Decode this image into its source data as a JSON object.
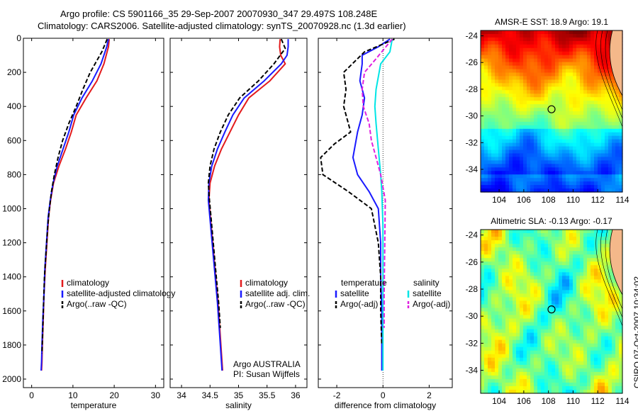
{
  "title_line1": "Argo profile: CS 5901166_35 29-Sep-2007 20070930_347 29.497S 108.248E",
  "title_line2": "Climatology: CARS2006. Satellite-adjusted climatology: synTS_20070928.nc (1.3d earlier)",
  "side_label": "CSIRO 07-Oct-2007 10:34:02",
  "colors": {
    "climatology": "#e31a1c",
    "satellite": "#1a1aff",
    "argo": "#000000",
    "satellite_sal": "#00e5e5",
    "argo_sal_adj": "#e020e0"
  },
  "chart_data": [
    {
      "type": "line",
      "id": "temperature",
      "xlabel": "temperature",
      "xlim": [
        -2,
        32
      ],
      "ylim": [
        0,
        2050
      ],
      "y_reversed": true,
      "xticks": [
        0,
        10,
        20,
        30
      ],
      "yticks": [
        0,
        200,
        400,
        600,
        800,
        1000,
        1200,
        1400,
        1600,
        1800,
        2000
      ],
      "legend": [
        "climatology",
        "satellite-adjusted climatology",
        "Argo(..raw -QC)"
      ],
      "series": [
        {
          "name": "climatology",
          "color": "#e31a1c",
          "dash": "",
          "x": [
            18.8,
            18.6,
            17.5,
            15.8,
            13.2,
            10.8,
            9.6,
            8.2,
            6.6,
            5.3,
            4.6,
            4.1,
            3.7,
            3.3,
            3.0,
            2.8,
            2.6,
            2.5,
            2.4
          ],
          "y": [
            5,
            50,
            150,
            250,
            350,
            450,
            550,
            650,
            750,
            850,
            950,
            1050,
            1200,
            1350,
            1500,
            1650,
            1800,
            1900,
            1950
          ]
        },
        {
          "name": "satellite-adjusted climatology",
          "color": "#1a1aff",
          "dash": "",
          "x": [
            18.6,
            18.2,
            16.8,
            14.7,
            12.2,
            10.2,
            9.0,
            7.6,
            6.2,
            5.2,
            4.5,
            4.0,
            3.6,
            3.2,
            3.0,
            2.7,
            2.5,
            2.4,
            2.3
          ],
          "y": [
            5,
            50,
            150,
            250,
            350,
            450,
            550,
            650,
            750,
            850,
            950,
            1050,
            1200,
            1350,
            1500,
            1650,
            1800,
            1900,
            1950
          ]
        },
        {
          "name": "Argo(..raw -QC)",
          "color": "#000000",
          "dash": "6,3",
          "x": [
            18.3,
            17.0,
            14.2,
            12.4,
            10.8,
            9.0,
            7.5,
            6.4,
            5.5,
            4.8,
            4.3,
            3.9,
            3.5,
            3.1,
            2.9,
            2.7,
            2.5
          ],
          "y": [
            5,
            80,
            200,
            300,
            400,
            500,
            600,
            700,
            800,
            900,
            1000,
            1100,
            1250,
            1400,
            1550,
            1700,
            1850
          ]
        }
      ],
      "annotations": []
    },
    {
      "type": "line",
      "id": "salinity",
      "xlabel": "salinity",
      "xlim": [
        33.8,
        36.2
      ],
      "ylim": [
        0,
        2050
      ],
      "y_reversed": true,
      "xticks": [
        34,
        34.5,
        35,
        35.5,
        36
      ],
      "xticklabels": [
        "34",
        "34.5",
        "35",
        "35.5",
        "36"
      ],
      "yticks": [
        0,
        200,
        400,
        600,
        800,
        1000,
        1200,
        1400,
        1600,
        1800,
        2000
      ],
      "legend": [
        "climatology",
        "satellite adj. clim.",
        "Argo(..raw -QC)"
      ],
      "series": [
        {
          "name": "climatology",
          "color": "#e31a1c",
          "dash": "",
          "x": [
            35.73,
            35.72,
            35.74,
            35.82,
            35.55,
            35.18,
            35.0,
            34.85,
            34.7,
            34.58,
            34.5,
            34.48,
            34.52,
            34.56,
            34.6,
            34.64,
            34.67,
            34.7,
            34.72
          ],
          "y": [
            5,
            50,
            100,
            150,
            250,
            350,
            450,
            550,
            650,
            750,
            850,
            950,
            1100,
            1250,
            1400,
            1550,
            1700,
            1850,
            1950
          ]
        },
        {
          "name": "satellite adj. clim.",
          "color": "#1a1aff",
          "dash": "",
          "x": [
            35.87,
            35.87,
            35.85,
            35.75,
            35.45,
            35.1,
            34.9,
            34.76,
            34.63,
            34.53,
            34.48,
            34.47,
            34.51,
            34.55,
            34.59,
            34.63,
            34.66,
            34.69,
            34.71
          ],
          "y": [
            5,
            50,
            100,
            150,
            250,
            350,
            450,
            550,
            650,
            750,
            850,
            950,
            1100,
            1250,
            1400,
            1550,
            1700,
            1850,
            1950
          ]
        },
        {
          "name": "Argo(..raw -QC)",
          "color": "#000000",
          "dash": "6,3",
          "x": [
            35.75,
            35.82,
            35.62,
            35.35,
            35.02,
            34.82,
            34.68,
            34.57,
            34.5,
            34.47,
            34.49,
            34.53,
            34.57,
            34.61,
            34.65,
            34.68
          ],
          "y": [
            5,
            60,
            150,
            250,
            350,
            450,
            550,
            650,
            750,
            850,
            950,
            1100,
            1250,
            1400,
            1550,
            1700
          ]
        }
      ],
      "annotations": [
        "Argo AUSTRALIA",
        "PI: Susan Wijffels"
      ]
    },
    {
      "type": "line",
      "id": "difference",
      "xlabel": "difference from climatology",
      "xlim": [
        -2.8,
        3.0
      ],
      "ylim": [
        0,
        2050
      ],
      "y_reversed": true,
      "xticks": [
        -2,
        0,
        2
      ],
      "yticks": [
        0,
        200,
        400,
        600,
        800,
        1000,
        1200,
        1400,
        1600,
        1800,
        2000
      ],
      "zero_line": true,
      "legend_temperature": [
        "temperature",
        "satellite",
        "Argo(-adj)"
      ],
      "legend_salinity": [
        "salinity",
        "satellite",
        "Argo(-adj)"
      ],
      "series": [
        {
          "name": "satellite",
          "group": "temperature",
          "color": "#1a1aff",
          "dash": "",
          "x": [
            0.3,
            -0.2,
            -0.9,
            -0.9,
            -1.0,
            -0.8,
            -0.9,
            -1.1,
            -1.3,
            -1.1,
            -0.6,
            -0.2,
            -0.1,
            -0.1,
            -0.05,
            -0.05,
            -0.05
          ],
          "y": [
            5,
            50,
            100,
            150,
            250,
            350,
            450,
            550,
            700,
            800,
            900,
            1000,
            1200,
            1400,
            1600,
            1800,
            1950
          ]
        },
        {
          "name": "Argo(-adj)",
          "group": "temperature",
          "color": "#000000",
          "dash": "6,3",
          "x": [
            0.5,
            -0.8,
            -1.7,
            -1.6,
            -1.7,
            -1.5,
            -1.4,
            -2.1,
            -2.7,
            -2.6,
            -1.5,
            -0.5,
            -0.2,
            -0.1,
            -0.1,
            -0.05
          ],
          "y": [
            5,
            80,
            200,
            300,
            400,
            500,
            550,
            620,
            700,
            800,
            900,
            1000,
            1200,
            1400,
            1600,
            1800
          ]
        },
        {
          "name": "satellite",
          "group": "salinity",
          "color": "#00e5e5",
          "dash": "",
          "x": [
            0.4,
            0.3,
            -0.1,
            -0.3,
            -0.35,
            -0.3,
            -0.2,
            -0.1,
            -0.05,
            0.0,
            0.0,
            0.0,
            0.0
          ],
          "y": [
            5,
            80,
            150,
            300,
            400,
            500,
            650,
            800,
            900,
            1100,
            1400,
            1700,
            1950
          ]
        },
        {
          "name": "Argo(-adj)",
          "group": "salinity",
          "color": "#e020e0",
          "dash": "6,3",
          "x": [
            0.4,
            -0.3,
            -0.8,
            -0.9,
            -0.85,
            -0.6,
            -0.5,
            -0.3,
            -0.1,
            0.1,
            0.08,
            0.05,
            0.05
          ],
          "y": [
            5,
            120,
            200,
            300,
            400,
            500,
            600,
            700,
            800,
            950,
            1200,
            1500,
            1700
          ]
        }
      ],
      "annotations": []
    },
    {
      "type": "heatmap",
      "id": "sst",
      "title": "AMSR-E SST: 18.9 Argo: 19.1",
      "xlim": [
        102.5,
        114
      ],
      "ylim": [
        -35.7,
        -23.6
      ],
      "xticks": [
        104,
        106,
        108,
        110,
        112,
        114
      ],
      "yticks": [
        -24,
        -26,
        -28,
        -30,
        -32,
        -34
      ],
      "marker": {
        "lon": 108.25,
        "lat": -29.5
      }
    },
    {
      "type": "heatmap",
      "id": "sla",
      "title": "Altimetric SLA: -0.13 Argo: -0.17",
      "xlim": [
        102.5,
        114
      ],
      "ylim": [
        -35.7,
        -23.6
      ],
      "xticks": [
        104,
        106,
        108,
        110,
        112,
        114
      ],
      "yticks": [
        -24,
        -26,
        -28,
        -30,
        -32,
        -34
      ],
      "marker": {
        "lon": 108.25,
        "lat": -29.5
      }
    }
  ]
}
